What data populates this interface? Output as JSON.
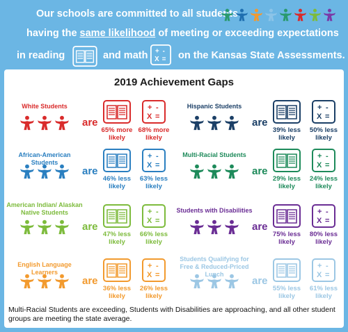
{
  "header": {
    "line1": "Our schools are committed to all students",
    "line2_before": "having the ",
    "line2_underlined": "same likelihood",
    "line2_after": " of meeting or exceeding expectations",
    "line3_a": "in reading",
    "line3_b": "and math",
    "line3_c": "on the Kansas State Assessments.",
    "people_colors": [
      "#2a9a6f",
      "#1f6fb0",
      "#f29a2e",
      "#8cc4e8",
      "#2a9a6f",
      "#d92b2b",
      "#7dbb3c",
      "#7a3aa8"
    ]
  },
  "title": "2019 Achievement Gaps",
  "are_word": "are",
  "groups": [
    {
      "label": "White Students",
      "color": "#d92b2b",
      "reading": "65% more likely",
      "math": "68% more likely"
    },
    {
      "label": "Hispanic Students",
      "color": "#1b3f66",
      "reading": "39% less likely",
      "math": "50% less likely"
    },
    {
      "label": "African-American Students",
      "color": "#2a7fc0",
      "reading": "46% less likely",
      "math": "63% less likely"
    },
    {
      "label": "Multi-Racial Students",
      "color": "#1d8a5a",
      "reading": "29% less likely",
      "math": "24% less likely"
    },
    {
      "label": "American Indian/ Alaskan Native Students",
      "color": "#7dbb3c",
      "reading": "47% less likely",
      "math": "66% less likely"
    },
    {
      "label": "Students with Disabilities",
      "color": "#6a2d94",
      "reading": "75% less likely",
      "math": "80% less likely"
    },
    {
      "label": "English Language Learners",
      "color": "#f29a2e",
      "reading": "36% less likely",
      "math": "26% less likely"
    },
    {
      "label": "Students Qualifying for Free & Reduced-Priced Lunch",
      "color": "#9cc7e4",
      "reading": "55% less likely",
      "math": "61% less likely"
    }
  ],
  "footer": "Multi-Racial Students are exceeding, Students with Disabilities are approaching, and all other student groups are meeting the state average."
}
